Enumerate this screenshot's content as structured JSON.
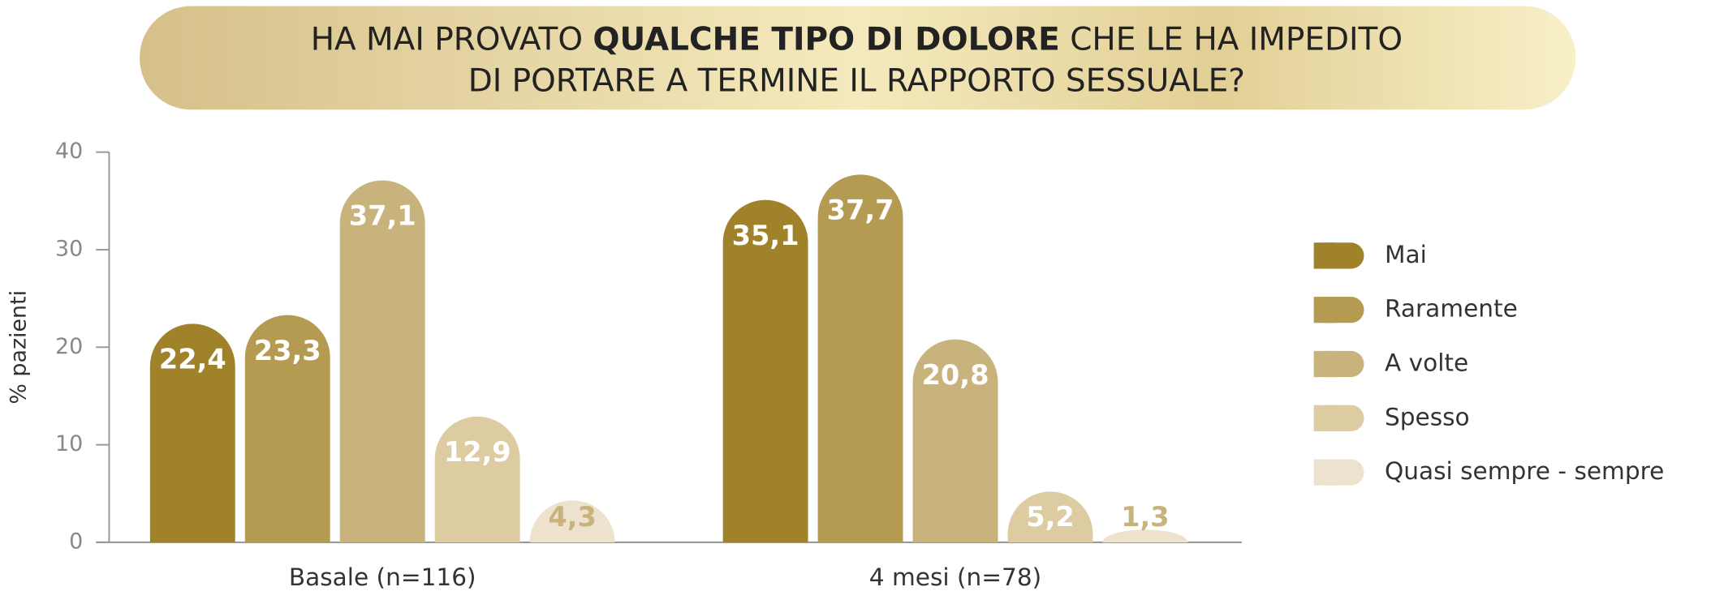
{
  "chart_data": {
    "type": "bar",
    "title_lines": [
      [
        {
          "text": "HA MAI PROVATO ",
          "bold": false
        },
        {
          "text": "QUALCHE TIPO DI DOLORE",
          "bold": true
        },
        {
          "text": " CHE LE HA IMPEDITO",
          "bold": false
        }
      ],
      [
        {
          "text": "DI PORTARE A TERMINE IL RAPPORTO SESSUALE?",
          "bold": false
        }
      ]
    ],
    "y_label": "% pazienti",
    "categories": [
      "Basale (n=116)",
      "4 mesi (n=78)"
    ],
    "series": [
      {
        "name": "Mai",
        "color": "#a0822a",
        "label_color": "#ffffff",
        "values": [
          22.4,
          35.1
        ],
        "value_labels": [
          "22,4",
          "35,1"
        ]
      },
      {
        "name": "Raramente",
        "color": "#b59b52",
        "label_color": "#ffffff",
        "values": [
          23.3,
          37.7
        ],
        "value_labels": [
          "23,3",
          "37,7"
        ]
      },
      {
        "name": "A volte",
        "color": "#c9b37c",
        "label_color": "#ffffff",
        "values": [
          37.1,
          20.8
        ],
        "value_labels": [
          "37,1",
          "20,8"
        ]
      },
      {
        "name": "Spesso",
        "color": "#ddcba2",
        "label_color": "#ffffff",
        "values": [
          12.9,
          5.2
        ],
        "value_labels": [
          "12,9",
          "5,2"
        ]
      },
      {
        "name": "Quasi sempre - sempre",
        "color": "#ede2cd",
        "label_color": "#c9b37c",
        "values": [
          4.3,
          1.3
        ],
        "value_labels": [
          "4,3",
          "1,3"
        ]
      }
    ],
    "ylim": [
      0,
      40
    ],
    "yticks": [
      0,
      10,
      20,
      30,
      40
    ]
  }
}
